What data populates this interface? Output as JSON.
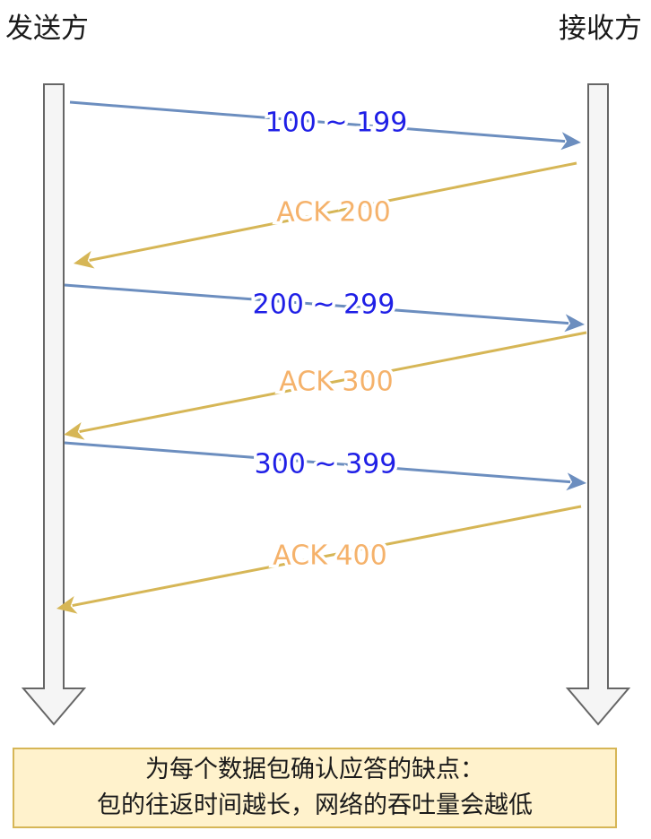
{
  "parties": {
    "sender": "发送方",
    "receiver": "接收方"
  },
  "messages": [
    {
      "label": "100 ~ 199",
      "direction": "send",
      "color": "#6c8ebf",
      "text_color": "#1f1fe6"
    },
    {
      "label": "ACK 200",
      "direction": "ack",
      "color": "#d6b656",
      "text_color": "#f5b26b"
    },
    {
      "label": "200 ~ 299",
      "direction": "send",
      "color": "#6c8ebf",
      "text_color": "#1f1fe6"
    },
    {
      "label": "ACK 300",
      "direction": "ack",
      "color": "#d6b656",
      "text_color": "#f5b26b"
    },
    {
      "label": "300 ~ 399",
      "direction": "send",
      "color": "#6c8ebf",
      "text_color": "#1f1fe6"
    },
    {
      "label": "ACK 400",
      "direction": "ack",
      "color": "#d6b656",
      "text_color": "#f5b26b"
    }
  ],
  "caption": {
    "line1": "为每个数据包确认应答的缺点：",
    "line2": "包的往返时间越长，网络的吞吐量会越低"
  },
  "colors": {
    "lifeline_fill": "#f5f5f5",
    "lifeline_stroke": "#666666",
    "caption_fill": "#fff2cc",
    "caption_stroke": "#d6b656"
  }
}
